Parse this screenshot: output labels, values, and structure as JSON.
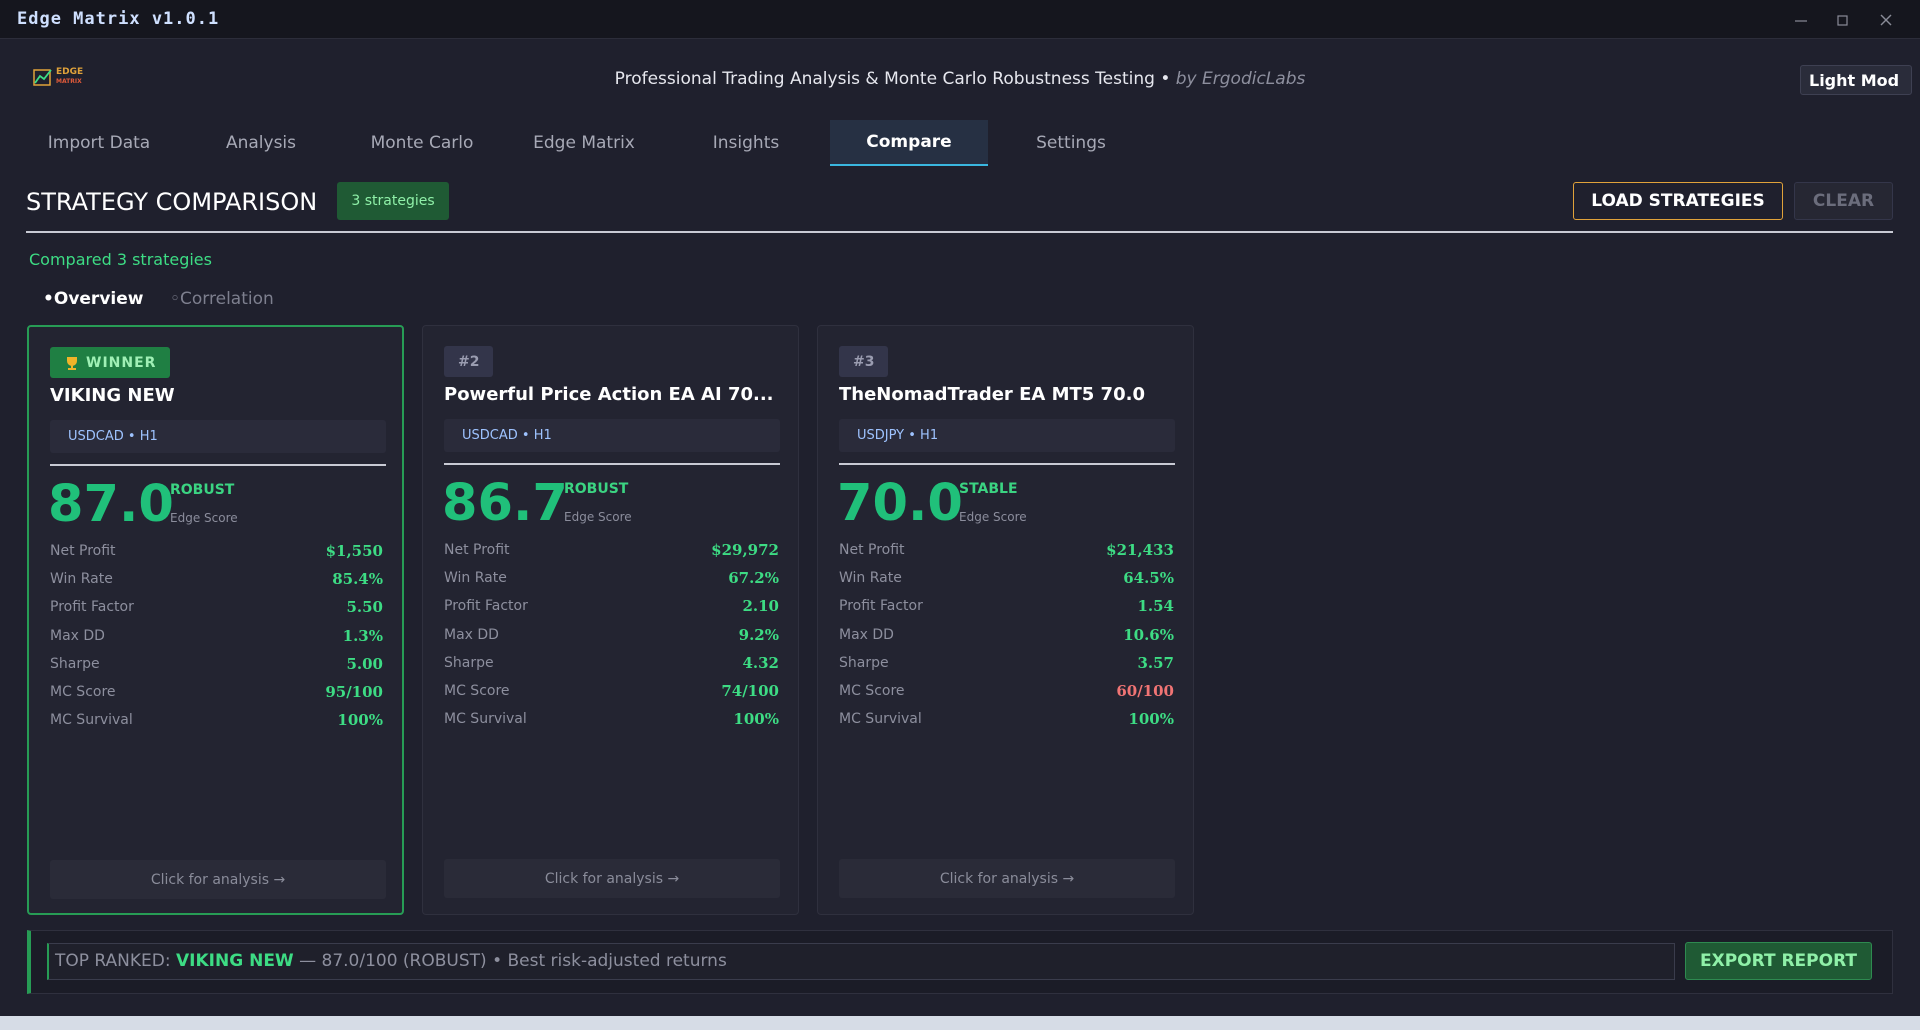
{
  "window_title": "Edge Matrix v1.0.1",
  "header": {
    "logo_lines": [
      "EDGE",
      "MATRIX"
    ],
    "subtitle": "Professional Trading Analysis & Monte Carlo Robustness Testing •",
    "byline": "by ErgodicLabs",
    "theme_button": "Light Mod"
  },
  "tabs": {
    "items": [
      "Import Data",
      "Analysis",
      "Monte Carlo",
      "Edge Matrix",
      "Insights",
      "Compare",
      "Settings"
    ],
    "active": "Compare"
  },
  "section": {
    "title": "STRATEGY COMPARISON",
    "badge": "3 strategies",
    "load_button": "LOAD STRATEGIES",
    "clear_button": "CLEAR",
    "status": "Compared 3 strategies",
    "view_tabs": [
      "•Overview",
      "◦Correlation"
    ],
    "active_view": "•Overview"
  },
  "cards": [
    {
      "badge": "WINNER",
      "winner": true,
      "name": "VIKING NEW",
      "pair": "USDCAD • H1",
      "score": "87.0",
      "status": "ROBUST",
      "score_label": "Edge Score",
      "metrics": [
        {
          "label": "Net Profit",
          "value": "$1,550"
        },
        {
          "label": "Win Rate",
          "value": "85.4%"
        },
        {
          "label": "Profit Factor",
          "value": "5.50"
        },
        {
          "label": "Max DD",
          "value": "1.3%"
        },
        {
          "label": "Sharpe",
          "value": "5.00"
        },
        {
          "label": "MC Score",
          "value": "95/100"
        },
        {
          "label": "MC Survival",
          "value": "100%"
        }
      ],
      "action": "Click for analysis →"
    },
    {
      "badge": "#2",
      "winner": false,
      "name": "Powerful Price Action EA AI 70...",
      "pair": "USDCAD • H1",
      "score": "86.7",
      "status": "ROBUST",
      "score_label": "Edge Score",
      "metrics": [
        {
          "label": "Net Profit",
          "value": "$29,972"
        },
        {
          "label": "Win Rate",
          "value": "67.2%"
        },
        {
          "label": "Profit Factor",
          "value": "2.10"
        },
        {
          "label": "Max DD",
          "value": "9.2%"
        },
        {
          "label": "Sharpe",
          "value": "4.32"
        },
        {
          "label": "MC Score",
          "value": "74/100"
        },
        {
          "label": "MC Survival",
          "value": "100%"
        }
      ],
      "action": "Click for analysis →"
    },
    {
      "badge": "#3",
      "winner": false,
      "name": "TheNomadTrader EA MT5 70.0",
      "pair": "USDJPY • H1",
      "score": "70.0",
      "status": "STABLE",
      "score_label": "Edge Score",
      "metrics": [
        {
          "label": "Net Profit",
          "value": "$21,433"
        },
        {
          "label": "Win Rate",
          "value": "64.5%"
        },
        {
          "label": "Profit Factor",
          "value": "1.54"
        },
        {
          "label": "Max DD",
          "value": "10.6%"
        },
        {
          "label": "Sharpe",
          "value": "3.57"
        },
        {
          "label": "MC Score",
          "value": "60/100",
          "color": "#f07474"
        },
        {
          "label": "MC Survival",
          "value": "100%"
        }
      ],
      "action": "Click for analysis →"
    }
  ],
  "footer": {
    "prefix": "TOP RANKED:",
    "name": "VIKING NEW",
    "detail": "— 87.0/100 (ROBUST) • Best risk-adjusted returns",
    "export_button": "EXPORT REPORT"
  }
}
